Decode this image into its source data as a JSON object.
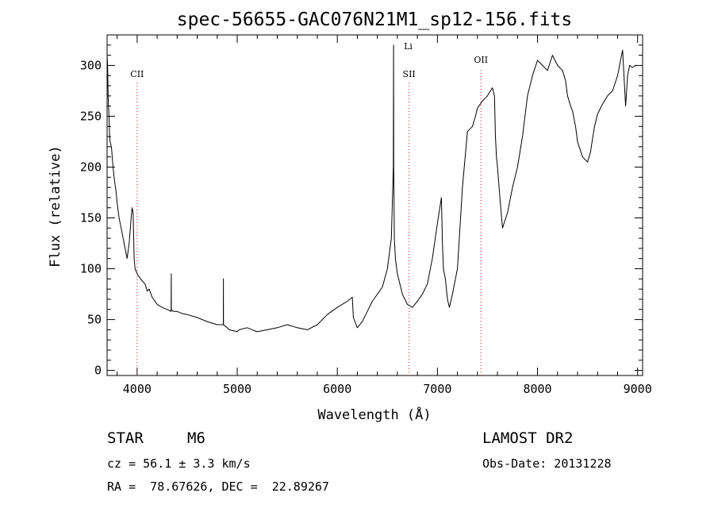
{
  "chart_data": {
    "type": "line",
    "title": "spec-56655-GAC076N21M1_sp12-156.fits",
    "xlabel": "Wavelength (Å)",
    "ylabel": "Flux (relative)",
    "xlim": [
      3700,
      9050
    ],
    "ylim": [
      -5,
      330
    ],
    "x_ticks": [
      4000,
      5000,
      6000,
      7000,
      8000,
      9000
    ],
    "y_ticks": [
      0,
      50,
      100,
      150,
      200,
      250,
      300
    ],
    "x_minor_step": 200,
    "y_minor_step": 10,
    "line_color": "#000000",
    "marker_color": "#e0332c",
    "spectral_lines": [
      {
        "name": "CII",
        "wavelength": 4000
      },
      {
        "name": "Li",
        "wavelength": 6708
      },
      {
        "name": "SII",
        "wavelength": 6717
      },
      {
        "name": "OII",
        "wavelength": 7435
      }
    ],
    "series": [
      {
        "x": [
          3700,
          3705,
          3710,
          3718,
          3725,
          3730,
          3738,
          3745,
          3755,
          3770,
          3790,
          3800,
          3820,
          3840,
          3860,
          3880,
          3900,
          3920,
          3940,
          3950,
          3960,
          3970,
          3980,
          4000,
          4020,
          4050,
          4080,
          4101,
          4120,
          4150,
          4200,
          4250,
          4300,
          4340,
          4341,
          4342,
          4360,
          4400,
          4450,
          4500,
          4600,
          4700,
          4800,
          4861,
          4862,
          4863,
          4900,
          4920,
          5000,
          5020,
          5100,
          5150,
          5200,
          5300,
          5400,
          5500,
          5600,
          5700,
          5800,
          5900,
          6000,
          6100,
          6150,
          6160,
          6200,
          6250,
          6300,
          6350,
          6400,
          6450,
          6500,
          6540,
          6560,
          6562,
          6564,
          6570,
          6580,
          6600,
          6650,
          6700,
          6750,
          6800,
          6850,
          6900,
          6950,
          7000,
          7040,
          7050,
          7060,
          7080,
          7100,
          7120,
          7150,
          7200,
          7250,
          7300,
          7350,
          7380,
          7400,
          7450,
          7500,
          7530,
          7550,
          7570,
          7580,
          7590,
          7600,
          7620,
          7650,
          7700,
          7750,
          7800,
          7850,
          7900,
          7950,
          8000,
          8050,
          8100,
          8150,
          8200,
          8250,
          8280,
          8300,
          8330,
          8350,
          8380,
          8400,
          8450,
          8500,
          8530,
          8550,
          8570,
          8600,
          8650,
          8700,
          8750,
          8800,
          8830,
          8850,
          8880,
          8900,
          8920,
          8950,
          8980
        ],
        "y": [
          310,
          300,
          270,
          250,
          230,
          225,
          222,
          218,
          205,
          190,
          175,
          165,
          150,
          140,
          130,
          120,
          110,
          125,
          150,
          160,
          155,
          110,
          100,
          95,
          92,
          88,
          85,
          78,
          80,
          72,
          65,
          62,
          60,
          58,
          95,
          60,
          58,
          58,
          56,
          55,
          52,
          48,
          45,
          45,
          90,
          45,
          42,
          40,
          38,
          40,
          42,
          40,
          38,
          40,
          42,
          45,
          42,
          40,
          45,
          55,
          62,
          68,
          72,
          52,
          42,
          48,
          58,
          68,
          75,
          82,
          100,
          130,
          200,
          320,
          200,
          130,
          110,
          95,
          75,
          65,
          62,
          68,
          75,
          85,
          110,
          145,
          170,
          125,
          100,
          90,
          70,
          62,
          75,
          100,
          180,
          235,
          240,
          250,
          258,
          265,
          270,
          275,
          278,
          270,
          230,
          210,
          200,
          175,
          140,
          155,
          180,
          200,
          230,
          270,
          290,
          305,
          300,
          295,
          310,
          300,
          295,
          285,
          270,
          260,
          255,
          240,
          225,
          210,
          205,
          215,
          228,
          240,
          252,
          262,
          270,
          275,
          290,
          305,
          315,
          260,
          290,
          300,
          298,
          300
        ]
      }
    ]
  },
  "info": {
    "object_type": "STAR",
    "subclass": "M6",
    "survey": "LAMOST DR2",
    "cz": "cz = 56.1 ± 3.3 km/s",
    "obs_date": "Obs-Date: 20131228",
    "coords": "RA =  78.67626, DEC =  22.89267"
  }
}
